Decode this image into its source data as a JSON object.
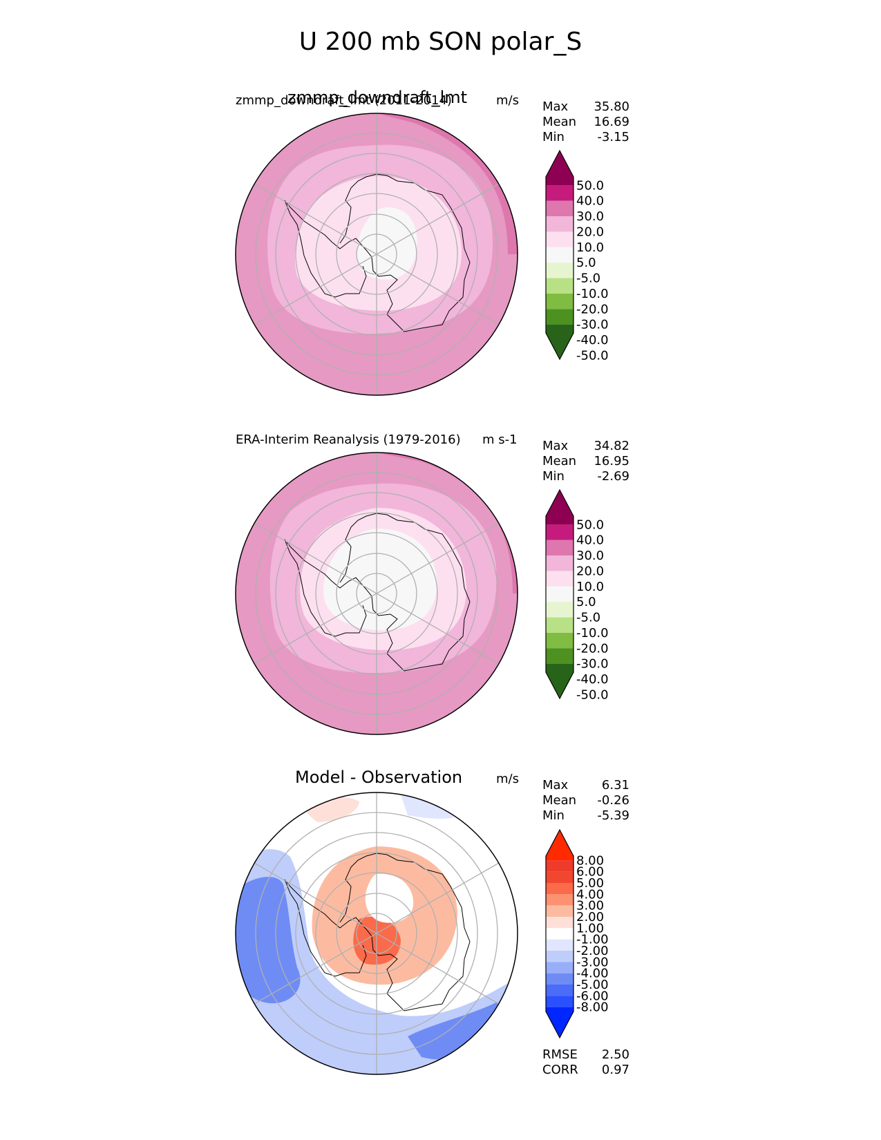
{
  "title": "U 200 mb SON polar_S",
  "colors": {
    "uwind": [
      "#276419",
      "#4d9221",
      "#7fbc41",
      "#b8e186",
      "#e6f5d0",
      "#f7f7f7",
      "#fde0ef",
      "#f1b6da",
      "#de77ae",
      "#c51b7d",
      "#8e0152"
    ],
    "diff": [
      "#0027ff",
      "#2a50ff",
      "#4a6cf7",
      "#6f8cf5",
      "#98aef8",
      "#bfcdfb",
      "#e0e6fd",
      "#ffffff",
      "#fee0d9",
      "#fcbba1",
      "#fc9272",
      "#fb6a4a",
      "#f0482e",
      "#ef3b2c",
      "#ff2a00"
    ]
  },
  "panels": [
    {
      "id": "test",
      "title_overlap": "zmmp_downdraft_lmt",
      "left_label": "zmmp_downdraft_lmt (2011-2014)",
      "units": "m/s",
      "stats": {
        "Max": "35.80",
        "Mean": "16.69",
        "Min": "-3.15"
      },
      "colorbar_ticks": [
        "50.0",
        "40.0",
        "30.0",
        "20.0",
        "10.0",
        "5.0",
        "-5.0",
        "-10.0",
        "-20.0",
        "-30.0",
        "-40.0",
        "-50.0"
      ]
    },
    {
      "id": "ref",
      "left_label": "ERA-Interim Reanalysis (1979-2016)",
      "units": "m s-1",
      "stats": {
        "Max": "34.82",
        "Mean": "16.95",
        "Min": "-2.69"
      },
      "colorbar_ticks": [
        "50.0",
        "40.0",
        "30.0",
        "20.0",
        "10.0",
        "5.0",
        "-5.0",
        "-10.0",
        "-20.0",
        "-30.0",
        "-40.0",
        "-50.0"
      ]
    },
    {
      "id": "diff",
      "title": "Model - Observation",
      "units": "m/s",
      "stats": {
        "Max": "6.31",
        "Mean": "-0.26",
        "Min": "-5.39"
      },
      "colorbar_ticks": [
        "8.00",
        "6.00",
        "5.00",
        "4.00",
        "3.00",
        "2.00",
        "1.00",
        "-1.00",
        "-2.00",
        "-3.00",
        "-4.00",
        "-5.00",
        "-6.00",
        "-8.00"
      ],
      "metrics": {
        "RMSE": "2.50",
        "CORR": "0.97"
      }
    }
  ]
}
